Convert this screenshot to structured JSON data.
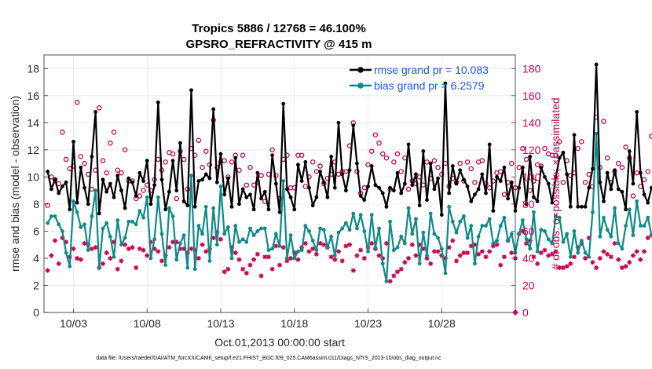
{
  "chart_data": {
    "type": "line",
    "title": "Tropics 5886 / 12768 = 46.100%",
    "subtitle": "GPSRO_REFRACTIVITY @ 415 m",
    "xlabel": "Oct.01,2013 00:00:00 start",
    "ylabel": "rmse and bias (model - observation)",
    "ylabel_right": "# of obs: o=possible; ×=assimilated",
    "footnote": "data file: /Users/raeder/DAI/ATM_forcXX/CAM6_setup/f.e21.FHIST_BGC.f09_025.CAM6assim.011/Diags_NTrS_2013-10/obs_diag_output.nc",
    "xlim": [
      1,
      33
    ],
    "ylim": [
      0,
      19
    ],
    "ylim_right": [
      0,
      190
    ],
    "x_ticks": [
      3,
      8,
      13,
      18,
      23,
      28
    ],
    "x_tick_labels": [
      "10/03",
      "10/08",
      "10/13",
      "10/18",
      "10/23",
      "10/28"
    ],
    "y_ticks": [
      0,
      2,
      4,
      6,
      8,
      10,
      12,
      14,
      16,
      18
    ],
    "y_right_ticks": [
      0,
      20,
      40,
      60,
      80,
      100,
      120,
      140,
      160,
      180
    ],
    "x_start": 1.25,
    "x_step": 0.25,
    "series": [
      {
        "name": "rmse",
        "legend": "rmse grand pr = 10.083",
        "color": "#000000",
        "marker": "dot",
        "values": [
          10.4,
          9.1,
          9.8,
          8.8,
          9.3,
          9.6,
          7.6,
          12.6,
          8.1,
          10.7,
          9.2,
          8.0,
          11.5,
          14.8,
          7.3,
          9.8,
          8.9,
          9.5,
          8.5,
          10.1,
          9.0,
          7.7,
          9.9,
          9.6,
          8.6,
          10.3,
          9.7,
          11.2,
          8.0,
          9.4,
          15.5,
          9.8,
          7.6,
          8.9,
          11.2,
          9.0,
          12.5,
          8.2,
          7.9,
          16.4,
          7.8,
          9.7,
          9.8,
          10.2,
          9.9,
          15.0,
          9.6,
          11.7,
          8.7,
          9.9,
          7.8,
          11.4,
          8.0,
          9.1,
          8.5,
          8.7,
          7.6,
          10.3,
          8.4,
          8.9,
          7.6,
          11.6,
          9.5,
          7.4,
          15.4,
          9.1,
          8.5,
          7.6,
          10.9,
          9.7,
          11.1,
          9.2,
          7.9,
          8.5,
          10.4,
          9.6,
          8.5,
          11.5,
          9.2,
          14.0,
          10.2,
          9.0,
          10.5,
          13.8,
          11.0,
          8.6,
          8.3,
          9.3,
          10.8,
          9.4,
          9.2,
          8.8,
          7.8,
          9.2,
          9.0,
          10.3,
          8.8,
          9.5,
          12.4,
          9.4,
          10.2,
          7.9,
          11.9,
          8.3,
          11.0,
          9.1,
          9.9,
          7.2,
          16.9,
          8.8,
          10.8,
          9.5,
          10.5,
          9.8,
          9.3,
          8.2,
          8.7,
          9.1,
          10.2,
          8.8,
          12.4,
          7.5,
          10.0,
          9.7,
          10.7,
          8.4,
          9.6,
          7.5,
          9.2,
          10.7,
          8.0,
          11.5,
          8.5,
          8.2,
          10.7,
          10.0,
          9.5,
          8.1,
          10.0,
          11.4,
          11.8,
          10.2,
          7.8,
          13.1,
          7.8,
          7.8,
          7.8,
          9.2,
          10.6,
          18.3,
          9.6,
          8.2,
          10.3,
          9.1,
          10.5,
          9.1,
          8.9,
          7.6,
          11.9,
          9.5,
          14.8,
          10.3,
          8.7,
          8.1,
          9.2,
          9.4,
          11.6,
          7.8,
          11.9,
          8.2
        ]
      },
      {
        "name": "bias",
        "legend": "bias grand pr = 6.2579",
        "color": "#0f8a8a",
        "marker": "dot",
        "values": [
          6.6,
          7.1,
          7.1,
          6.5,
          6.0,
          4.4,
          3.4,
          8.2,
          7.4,
          6.3,
          6.5,
          4.6,
          7.1,
          9.0,
          3.3,
          6.2,
          6.6,
          5.6,
          4.1,
          6.8,
          5.0,
          5.5,
          6.7,
          6.7,
          6.5,
          7.5,
          7.0,
          8.5,
          4.0,
          5.4,
          8.5,
          5.8,
          3.5,
          7.7,
          7.1,
          3.9,
          5.1,
          5.7,
          3.3,
          10.1,
          3.2,
          6.4,
          5.8,
          7.8,
          3.8,
          7.7,
          5.0,
          9.3,
          5.8,
          6.3,
          4.0,
          6.4,
          5.2,
          5.4,
          5.2,
          6.2,
          5.7,
          6.0,
          6.2,
          6.2,
          4.6,
          4.7,
          5.8,
          4.9,
          9.7,
          4.0,
          5.7,
          4.0,
          4.5,
          4.6,
          6.4,
          6.0,
          5.3,
          4.6,
          6.2,
          6.1,
          4.8,
          5.6,
          4.2,
          5.9,
          6.2,
          6.6,
          6.1,
          7.3,
          6.2,
          7.2,
          6.0,
          4.5,
          7.2,
          4.8,
          6.2,
          3.6,
          2.3,
          6.7,
          4.6,
          4.8,
          5.6,
          5.1,
          7.7,
          5.8,
          6.9,
          3.6,
          5.9,
          4.2,
          7.3,
          5.8,
          5.5,
          4.7,
          2.9,
          7.8,
          6.7,
          5.9,
          6.7,
          7.1,
          5.5,
          6.4,
          3.6,
          5.6,
          6.4,
          6.4,
          6.9,
          5.1,
          5.3,
          6.4,
          7.0,
          5.3,
          5.8,
          4.4,
          5.8,
          6.8,
          5.4,
          4.7,
          7.4,
          4.5,
          6.1,
          6.0,
          5.4,
          5.1,
          7.1,
          7.0,
          5.2,
          5.8,
          4.1,
          6.0,
          4.4,
          5.3,
          4.4,
          4.1,
          7.4,
          13.2,
          5.6,
          7.0,
          6.1,
          5.6,
          7.7,
          5.1,
          4.7,
          6.4,
          7.6,
          5.7,
          8.2,
          6.4,
          6.4,
          7.0,
          5.7,
          5.5,
          6.9,
          5.2,
          6.0,
          4.4
        ]
      },
      {
        "name": "possible",
        "axis": "right",
        "color": "#c8004e",
        "marker": "o",
        "values": [
          79,
          100,
          98,
          95,
          133,
          113,
          106,
          108,
          155,
          115,
          110,
          102,
          91,
          105,
          151,
          112,
          103,
          125,
          133,
          105,
          103,
          120,
          97,
          97,
          84,
          86,
          90,
          94,
          90,
          98,
          113,
          105,
          111,
          118,
          117,
          84,
          119,
          113,
          91,
          121,
          116,
          127,
          107,
          119,
          109,
          142,
          107,
          111,
          112,
          100,
          111,
          116,
          105,
          116,
          94,
          107,
          94,
          96,
          101,
          82,
          102,
          120,
          101,
          84,
          113,
          116,
          92,
          92,
          116,
          116,
          93,
          100,
          111,
          104,
          108,
          95,
          99,
          102,
          111,
          102,
          104,
          104,
          123,
          140,
          104,
          88,
          92,
          109,
          119,
          131,
          125,
          117,
          114,
          91,
          111,
          117,
          104,
          114,
          91,
          97,
          95,
          100,
          94,
          111,
          99,
          112,
          107,
          102,
          110,
          93,
          99,
          96,
          110,
          97,
          111,
          106,
          96,
          111,
          112,
          95,
          92,
          97,
          103,
          104,
          87,
          96,
          110,
          92,
          107,
          121,
          113,
          90,
          97,
          109,
          108,
          121,
          117,
          116,
          116,
          126,
          96,
          112,
          101,
          103,
          121,
          126,
          96,
          102,
          93,
          144,
          107,
          141,
          114,
          96,
          104,
          110,
          107,
          122,
          114,
          86,
          103,
          93,
          98,
          104,
          130,
          99
        ]
      },
      {
        "name": "assimilated",
        "axis": "right",
        "color": "#c8004e",
        "marker": "x",
        "values": [
          31,
          42,
          53,
          36,
          55,
          52,
          41,
          47,
          40,
          39,
          51,
          50,
          47,
          48,
          33,
          36,
          44,
          40,
          52,
          32,
          38,
          50,
          47,
          48,
          33,
          47,
          46,
          42,
          52,
          47,
          45,
          38,
          42,
          48,
          52,
          52,
          47,
          47,
          44,
          47,
          46,
          40,
          50,
          45,
          47,
          55,
          59,
          54,
          30,
          32,
          48,
          44,
          39,
          32,
          29,
          35,
          39,
          43,
          27,
          41,
          41,
          32,
          49,
          35,
          48,
          38,
          40,
          44,
          39,
          48,
          51,
          45,
          47,
          43,
          51,
          50,
          48,
          41,
          39,
          45,
          38,
          49,
          50,
          31,
          42,
          46,
          40,
          48,
          51,
          47,
          42,
          40,
          51,
          23,
          27,
          30,
          32,
          37,
          40,
          50,
          42,
          50,
          47,
          40,
          36,
          45,
          45,
          42,
          40,
          48,
          53,
          38,
          42,
          44,
          44,
          49,
          50,
          43,
          45,
          41,
          45,
          49,
          50,
          35,
          41,
          53,
          44,
          40,
          58,
          60,
          51,
          53,
          41,
          36,
          44,
          46,
          42,
          43,
          45,
          33,
          33,
          34,
          36,
          41,
          48,
          51,
          40,
          55,
          37,
          33,
          40,
          45,
          43,
          41,
          51,
          39,
          33,
          34,
          37,
          42,
          45,
          39,
          45,
          55,
          57,
          47
        ]
      }
    ],
    "legend_position": "top-right"
  }
}
